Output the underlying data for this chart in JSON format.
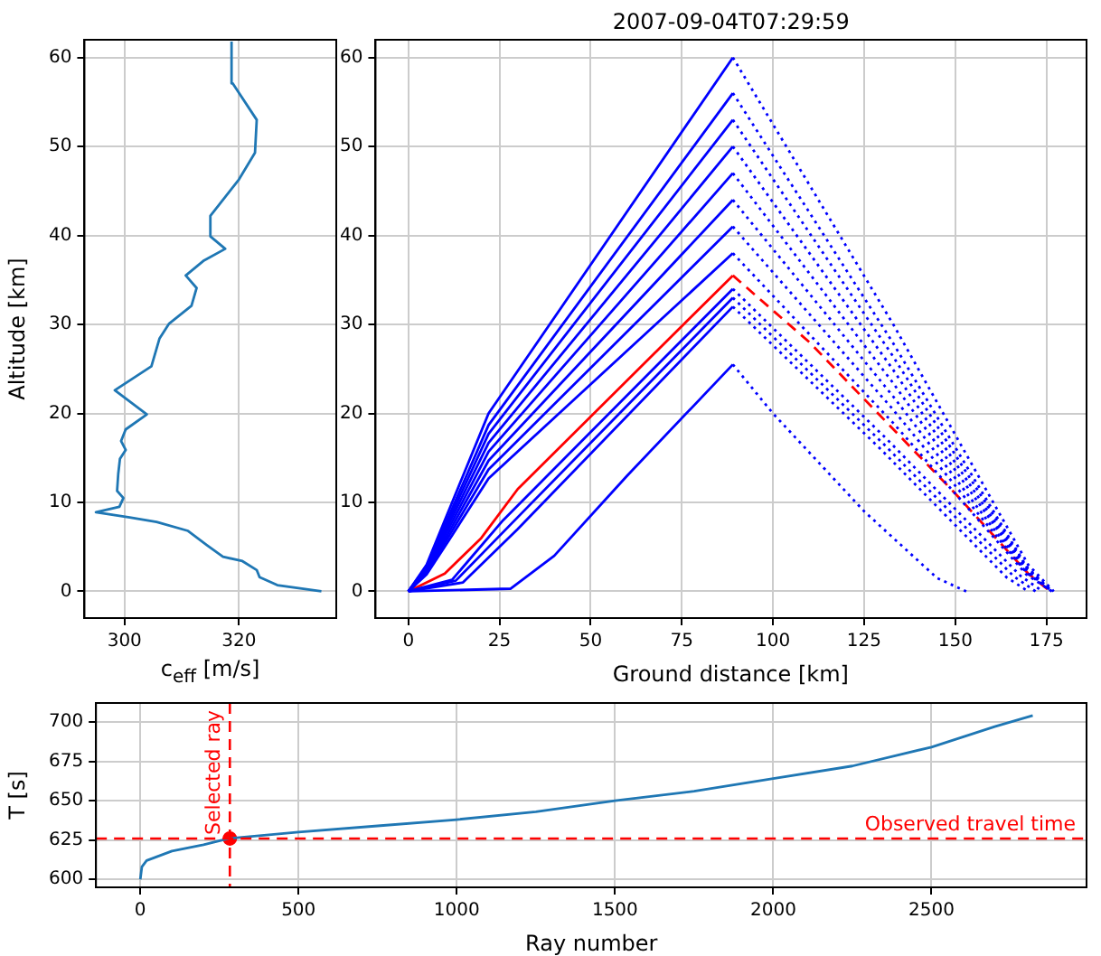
{
  "chart_data": [
    {
      "type": "line",
      "xlabel": "c$_{eff}$ [m/s]",
      "ylabel": "Altitude [km]",
      "xlim": [
        293,
        337
      ],
      "xticks": [
        300,
        320
      ],
      "ylim": [
        -3,
        62
      ],
      "yticks": [
        0,
        10,
        20,
        30,
        40,
        50,
        60
      ],
      "grid": true,
      "legend": false,
      "series": [
        {
          "color": "#1f77b4",
          "line_style": "solid",
          "x": [
            334.4,
            326.7,
            323.6,
            323.1,
            320.6,
            317.2,
            314.4,
            311.1,
            305.6,
            300.9,
            295,
            299.1,
            299.8,
            298.7,
            298.9,
            299.2,
            300.2,
            299.4,
            300.2,
            303.9,
            298.3,
            304.7,
            306.1,
            307.8,
            311.7,
            312.6,
            310.7,
            313.9,
            317.6,
            315,
            315,
            320,
            322.8,
            323.1,
            318.9,
            318.7
          ],
          "values": [
            0,
            0.7,
            1.6,
            2.4,
            3.4,
            3.9,
            5.2,
            6.8,
            7.8,
            8.3,
            8.9,
            9.5,
            10.5,
            11.3,
            13.2,
            14.9,
            15.9,
            16.9,
            18.2,
            19.9,
            22.6,
            25.3,
            28.4,
            30.1,
            32.1,
            34.1,
            35.5,
            37.2,
            38.5,
            39.9,
            42.2,
            46.3,
            49.3,
            53,
            57.1,
            61.8
          ]
        }
      ]
    },
    {
      "type": "line",
      "title": "2007-09-04T07:29:59",
      "xlabel": "Ground distance [km]",
      "xlim": [
        -9,
        186
      ],
      "xticks": [
        0,
        25,
        50,
        75,
        100,
        125,
        150,
        175
      ],
      "ylim": [
        -3,
        62
      ],
      "yticks": [
        0,
        10,
        20,
        30,
        40,
        50,
        60
      ],
      "grid": true,
      "legend": false,
      "series": [
        {
          "color": "#0000ff",
          "line_style": "solid",
          "x": [
            0,
            28,
            40,
            60,
            89
          ],
          "values": [
            0,
            0.3,
            4,
            13,
            25.5
          ]
        },
        {
          "color": "#0000ff",
          "line_style": "dotted",
          "x": [
            89,
            100,
            125,
            145,
            153
          ],
          "values": [
            25.5,
            20,
            9,
            1.5,
            0
          ]
        },
        {
          "color": "#0000ff",
          "line_style": "solid",
          "x": [
            0,
            15,
            30,
            89
          ],
          "values": [
            0,
            1,
            7,
            32
          ]
        },
        {
          "color": "#0000ff",
          "line_style": "dotted",
          "x": [
            89,
            129.5,
            164,
            170
          ],
          "values": [
            32,
            16,
            1.6,
            0
          ]
        },
        {
          "color": "#0000ff",
          "line_style": "solid",
          "x": [
            0,
            13,
            28,
            89
          ],
          "values": [
            0,
            1.2,
            7.5,
            33
          ]
        },
        {
          "color": "#0000ff",
          "line_style": "dotted",
          "x": [
            89,
            130.5,
            166,
            172
          ],
          "values": [
            33,
            16.5,
            1.7,
            0
          ]
        },
        {
          "color": "#0000ff",
          "line_style": "solid",
          "x": [
            0,
            12,
            26,
            89
          ],
          "values": [
            0,
            1.3,
            8,
            34
          ]
        },
        {
          "color": "#0000ff",
          "line_style": "dotted",
          "x": [
            89,
            131.5,
            168,
            174
          ],
          "values": [
            34,
            17,
            1.7,
            0
          ]
        },
        {
          "color": "#0000ff",
          "line_style": "solid",
          "x": [
            0,
            5,
            12,
            22,
            89
          ],
          "values": [
            0,
            1.9,
            6.3,
            12.7,
            38
          ]
        },
        {
          "color": "#0000ff",
          "line_style": "dotted",
          "x": [
            89,
            132.8,
            169.5,
            176.5
          ],
          "values": [
            38,
            19,
            1.9,
            0
          ]
        },
        {
          "color": "#0000ff",
          "line_style": "solid",
          "x": [
            0,
            5,
            12,
            22,
            89
          ],
          "values": [
            0,
            2.1,
            6.8,
            13.7,
            41
          ]
        },
        {
          "color": "#0000ff",
          "line_style": "dotted",
          "x": [
            89,
            132.8,
            169.5,
            176.5
          ],
          "values": [
            41,
            20.5,
            2.1,
            0
          ]
        },
        {
          "color": "#0000ff",
          "line_style": "solid",
          "x": [
            0,
            5,
            12,
            22,
            89
          ],
          "values": [
            0,
            2.2,
            7.3,
            14.7,
            44
          ]
        },
        {
          "color": "#0000ff",
          "line_style": "dotted",
          "x": [
            89,
            132.8,
            169.5,
            176.5
          ],
          "values": [
            44,
            22,
            2.2,
            0
          ]
        },
        {
          "color": "#0000ff",
          "line_style": "solid",
          "x": [
            0,
            5,
            12,
            22,
            89
          ],
          "values": [
            0,
            2.4,
            7.8,
            15.7,
            47
          ]
        },
        {
          "color": "#0000ff",
          "line_style": "dotted",
          "x": [
            89,
            132.8,
            169.5,
            176.5
          ],
          "values": [
            47,
            23.5,
            2.4,
            0
          ]
        },
        {
          "color": "#0000ff",
          "line_style": "solid",
          "x": [
            0,
            5,
            12,
            22,
            89
          ],
          "values": [
            0,
            2.5,
            8.3,
            16.7,
            50
          ]
        },
        {
          "color": "#0000ff",
          "line_style": "dotted",
          "x": [
            89,
            132.8,
            169.5,
            176.5
          ],
          "values": [
            50,
            25,
            2.5,
            0
          ]
        },
        {
          "color": "#0000ff",
          "line_style": "solid",
          "x": [
            0,
            5,
            12,
            22,
            89
          ],
          "values": [
            0,
            2.7,
            8.8,
            17.7,
            53
          ]
        },
        {
          "color": "#0000ff",
          "line_style": "dotted",
          "x": [
            89,
            132.8,
            169.5,
            176.5
          ],
          "values": [
            53,
            26.5,
            2.7,
            0
          ]
        },
        {
          "color": "#0000ff",
          "line_style": "solid",
          "x": [
            0,
            5,
            12,
            22,
            89
          ],
          "values": [
            0,
            2.8,
            9.3,
            18.7,
            56
          ]
        },
        {
          "color": "#0000ff",
          "line_style": "dotted",
          "x": [
            89,
            132.8,
            169.5,
            176.5
          ],
          "values": [
            56,
            28,
            2.8,
            0
          ]
        },
        {
          "color": "#0000ff",
          "line_style": "solid",
          "x": [
            0,
            5,
            12,
            22,
            89
          ],
          "values": [
            0,
            3,
            10,
            20,
            60
          ]
        },
        {
          "color": "#0000ff",
          "line_style": "dotted",
          "x": [
            89,
            133,
            170,
            177
          ],
          "values": [
            60,
            30,
            3,
            0
          ]
        },
        {
          "color": "#ff0000",
          "line_style": "solid",
          "x": [
            0,
            10,
            20,
            30,
            89
          ],
          "values": [
            0,
            2,
            6,
            11.5,
            35.5
          ]
        },
        {
          "color": "#ff0000",
          "line_style": "dashed",
          "x": [
            89,
            110,
            150,
            170,
            176
          ],
          "values": [
            35.5,
            28,
            11,
            2,
            0
          ]
        }
      ]
    },
    {
      "type": "line",
      "xlabel": "Ray number",
      "ylabel": "T [s]",
      "xlim": [
        -140,
        2990
      ],
      "xticks": [
        0,
        500,
        1000,
        1500,
        2000,
        2500
      ],
      "ylim": [
        595,
        712
      ],
      "yticks": [
        600,
        625,
        650,
        675,
        700
      ],
      "grid": true,
      "legend": false,
      "series": [
        {
          "color": "#1f77b4",
          "line_style": "solid",
          "x": [
            0,
            5,
            20,
            100,
            200,
            280,
            500,
            750,
            1000,
            1250,
            1500,
            1750,
            2000,
            2250,
            2500,
            2700,
            2820
          ],
          "values": [
            600,
            608,
            612,
            618,
            622,
            626,
            630,
            634,
            638,
            643,
            650,
            656,
            664,
            672,
            684,
            697,
            704
          ]
        },
        {
          "type": "scatter",
          "marker": "circle",
          "color": "#ff0000",
          "x": [
            283
          ],
          "values": [
            626
          ]
        }
      ],
      "ref_lines": [
        {
          "axis": "y",
          "value": 626,
          "label": "Observed travel time",
          "color": "#ff0000",
          "line_style": "dashed"
        },
        {
          "axis": "x",
          "value": 283,
          "label": "Selected ray",
          "color": "#ff0000",
          "line_style": "dashed"
        }
      ]
    }
  ]
}
